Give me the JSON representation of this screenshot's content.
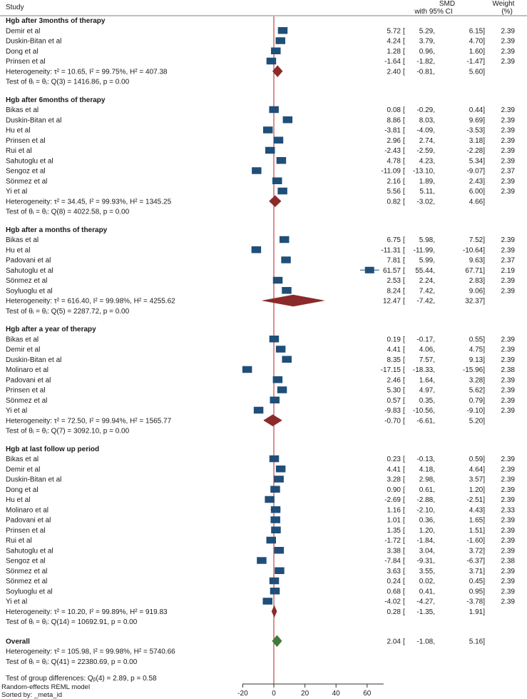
{
  "chart_data": {
    "type": "forest",
    "header": {
      "study": "Study",
      "effect_line1": "SMD",
      "effect_line2": "with 95% CI",
      "weight_line1": "Weight",
      "weight_line2": "(%)"
    },
    "null_line": 0,
    "x_axis": {
      "min": -20,
      "max": 60,
      "ticks": [
        -20,
        0,
        20,
        40,
        60
      ],
      "tick_labels": [
        "-20",
        "0",
        "20",
        "40",
        "60"
      ]
    },
    "groups": [
      {
        "title": "Hgb after 3months of therapy",
        "studies": [
          {
            "name": "Demir et al",
            "est": 5.72,
            "lo": 5.29,
            "hi": 6.15,
            "weight": 2.39,
            "est_text": "5.72",
            "lo_text": "5.29",
            "hi_text": "6.15",
            "weight_text": "2.39"
          },
          {
            "name": "Duskin-Bitan et al",
            "est": 4.24,
            "lo": 3.79,
            "hi": 4.7,
            "weight": 2.39,
            "est_text": "4.24",
            "lo_text": "3.79",
            "hi_text": "4.70",
            "weight_text": "2.39"
          },
          {
            "name": "Dong et al",
            "est": 1.28,
            "lo": 0.96,
            "hi": 1.6,
            "weight": 2.39,
            "est_text": "1.28",
            "lo_text": "0.96",
            "hi_text": "1.60",
            "weight_text": "2.39"
          },
          {
            "name": "Prinsen et al",
            "est": -1.64,
            "lo": -1.82,
            "hi": -1.47,
            "weight": 2.39,
            "est_text": "-1.64",
            "lo_text": "-1.82",
            "hi_text": "-1.47",
            "weight_text": "2.39"
          }
        ],
        "heterogeneity": "Heterogeneity: τ² = 10.65, I² = 99.75%, H² = 407.38",
        "pooled": {
          "est": 2.4,
          "lo": -0.81,
          "hi": 5.6,
          "est_text": "2.40",
          "lo_text": "-0.81",
          "hi_text": "5.60"
        },
        "test": "Test of θᵢ = θⱼ: Q(3) = 1416.86, p = 0.00"
      },
      {
        "title": "Hgb after 6months of therapy",
        "studies": [
          {
            "name": "Bikas et al",
            "est": 0.08,
            "lo": -0.29,
            "hi": 0.44,
            "weight": 2.39,
            "est_text": "0.08",
            "lo_text": "-0.29",
            "hi_text": "0.44",
            "weight_text": "2.39"
          },
          {
            "name": "Duskin-Bitan et al",
            "est": 8.86,
            "lo": 8.03,
            "hi": 9.69,
            "weight": 2.39,
            "est_text": "8.86",
            "lo_text": "8.03",
            "hi_text": "9.69",
            "weight_text": "2.39"
          },
          {
            "name": "Hu et al",
            "est": -3.81,
            "lo": -4.09,
            "hi": -3.53,
            "weight": 2.39,
            "est_text": "-3.81",
            "lo_text": "-4.09",
            "hi_text": "-3.53",
            "weight_text": "2.39"
          },
          {
            "name": "Prinsen et al",
            "est": 2.96,
            "lo": 2.74,
            "hi": 3.18,
            "weight": 2.39,
            "est_text": "2.96",
            "lo_text": "2.74",
            "hi_text": "3.18",
            "weight_text": "2.39"
          },
          {
            "name": "Rui et al",
            "est": -2.43,
            "lo": -2.59,
            "hi": -2.28,
            "weight": 2.39,
            "est_text": "-2.43",
            "lo_text": "-2.59",
            "hi_text": "-2.28",
            "weight_text": "2.39"
          },
          {
            "name": "Sahutoglu et al",
            "est": 4.78,
            "lo": 4.23,
            "hi": 5.34,
            "weight": 2.39,
            "est_text": "4.78",
            "lo_text": "4.23",
            "hi_text": "5.34",
            "weight_text": "2.39"
          },
          {
            "name": "Sengoz et al",
            "est": -11.09,
            "lo": -13.1,
            "hi": -9.07,
            "weight": 2.37,
            "est_text": "-11.09",
            "lo_text": "-13.10",
            "hi_text": "-9.07",
            "weight_text": "2.37"
          },
          {
            "name": "Sönmez et al",
            "est": 2.16,
            "lo": 1.89,
            "hi": 2.43,
            "weight": 2.39,
            "est_text": "2.16",
            "lo_text": "1.89",
            "hi_text": "2.43",
            "weight_text": "2.39"
          },
          {
            "name": "Yi et al",
            "est": 5.56,
            "lo": 5.11,
            "hi": 6.0,
            "weight": 2.39,
            "est_text": "5.56",
            "lo_text": "5.11",
            "hi_text": "6.00",
            "weight_text": "2.39"
          }
        ],
        "heterogeneity": "Heterogeneity: τ² = 34.45, I² = 99.93%, H² = 1345.25",
        "pooled": {
          "est": 0.82,
          "lo": -3.02,
          "hi": 4.66,
          "est_text": "0.82",
          "lo_text": "-3.02",
          "hi_text": "4.66"
        },
        "test": "Test of θᵢ = θⱼ: Q(8) = 4022.58, p = 0.00"
      },
      {
        "title": "Hgb after a months of therapy",
        "studies": [
          {
            "name": "Bikas et al",
            "est": 6.75,
            "lo": 5.98,
            "hi": 7.52,
            "weight": 2.39,
            "est_text": "6.75",
            "lo_text": "5.98",
            "hi_text": "7.52",
            "weight_text": "2.39"
          },
          {
            "name": "Hu et al",
            "est": -11.31,
            "lo": -11.99,
            "hi": -10.64,
            "weight": 2.39,
            "est_text": "-11.31",
            "lo_text": "-11.99",
            "hi_text": "-10.64",
            "weight_text": "2.39"
          },
          {
            "name": "Padovani et al",
            "est": 7.81,
            "lo": 5.99,
            "hi": 9.63,
            "weight": 2.37,
            "est_text": "7.81",
            "lo_text": "5.99",
            "hi_text": "9.63",
            "weight_text": "2.37"
          },
          {
            "name": "Sahutoglu et al",
            "est": 61.57,
            "lo": 55.44,
            "hi": 67.71,
            "weight": 2.19,
            "est_text": "61.57",
            "lo_text": "55.44",
            "hi_text": "67.71",
            "weight_text": "2.19"
          },
          {
            "name": "Sönmez et al",
            "est": 2.53,
            "lo": 2.24,
            "hi": 2.83,
            "weight": 2.39,
            "est_text": "2.53",
            "lo_text": "2.24",
            "hi_text": "2.83",
            "weight_text": "2.39"
          },
          {
            "name": "Soyluoglu et al",
            "est": 8.24,
            "lo": 7.42,
            "hi": 9.06,
            "weight": 2.39,
            "est_text": "8.24",
            "lo_text": "7.42",
            "hi_text": "9.06",
            "weight_text": "2.39"
          }
        ],
        "heterogeneity": "Heterogeneity: τ² = 616.40, I² = 99.98%, H² = 4255.62",
        "pooled": {
          "est": 12.47,
          "lo": -7.42,
          "hi": 32.37,
          "est_text": "12.47",
          "lo_text": "-7.42",
          "hi_text": "32.37"
        },
        "test": "Test of θᵢ = θⱼ: Q(5) = 2287.72, p = 0.00"
      },
      {
        "title": "Hgb after a year of therapy",
        "studies": [
          {
            "name": "Bikas et al",
            "est": 0.19,
            "lo": -0.17,
            "hi": 0.55,
            "weight": 2.39,
            "est_text": "0.19",
            "lo_text": "-0.17",
            "hi_text": "0.55",
            "weight_text": "2.39"
          },
          {
            "name": "Demir et al",
            "est": 4.41,
            "lo": 4.06,
            "hi": 4.75,
            "weight": 2.39,
            "est_text": "4.41",
            "lo_text": "4.06",
            "hi_text": "4.75",
            "weight_text": "2.39"
          },
          {
            "name": "Duskin-Bitan et al",
            "est": 8.35,
            "lo": 7.57,
            "hi": 9.13,
            "weight": 2.39,
            "est_text": "8.35",
            "lo_text": "7.57",
            "hi_text": "9.13",
            "weight_text": "2.39"
          },
          {
            "name": "Molinaro et al",
            "est": -17.15,
            "lo": -18.33,
            "hi": -15.96,
            "weight": 2.38,
            "est_text": "-17.15",
            "lo_text": "-18.33",
            "hi_text": "-15.96",
            "weight_text": "2.38"
          },
          {
            "name": "Padovani et al",
            "est": 2.46,
            "lo": 1.64,
            "hi": 3.28,
            "weight": 2.39,
            "est_text": "2.46",
            "lo_text": "1.64",
            "hi_text": "3.28",
            "weight_text": "2.39"
          },
          {
            "name": "Prinsen et al",
            "est": 5.3,
            "lo": 4.97,
            "hi": 5.62,
            "weight": 2.39,
            "est_text": "5.30",
            "lo_text": "4.97",
            "hi_text": "5.62",
            "weight_text": "2.39"
          },
          {
            "name": "Sönmez et al",
            "est": 0.57,
            "lo": 0.35,
            "hi": 0.79,
            "weight": 2.39,
            "est_text": "0.57",
            "lo_text": "0.35",
            "hi_text": "0.79",
            "weight_text": "2.39"
          },
          {
            "name": "Yi et al",
            "est": -9.83,
            "lo": -10.56,
            "hi": -9.1,
            "weight": 2.39,
            "est_text": "-9.83",
            "lo_text": "-10.56",
            "hi_text": "-9.10",
            "weight_text": "2.39"
          }
        ],
        "heterogeneity": "Heterogeneity: τ² = 72.50, I² = 99.94%, H² = 1565.77",
        "pooled": {
          "est": -0.7,
          "lo": -6.61,
          "hi": 5.2,
          "est_text": "-0.70",
          "lo_text": "-6.61",
          "hi_text": "5.20"
        },
        "test": "Test of θᵢ = θⱼ: Q(7) = 3092.10, p = 0.00"
      },
      {
        "title": "Hgb at last follow up  period",
        "studies": [
          {
            "name": "Bikas  et al",
            "est": 0.23,
            "lo": -0.13,
            "hi": 0.59,
            "weight": 2.39,
            "est_text": "0.23",
            "lo_text": "-0.13",
            "hi_text": "0.59",
            "weight_text": "2.39"
          },
          {
            "name": "Demir et al",
            "est": 4.41,
            "lo": 4.18,
            "hi": 4.64,
            "weight": 2.39,
            "est_text": "4.41",
            "lo_text": "4.18",
            "hi_text": "4.64",
            "weight_text": "2.39"
          },
          {
            "name": "Duskin-Bitan et al",
            "est": 3.28,
            "lo": 2.98,
            "hi": 3.57,
            "weight": 2.39,
            "est_text": "3.28",
            "lo_text": "2.98",
            "hi_text": "3.57",
            "weight_text": "2.39"
          },
          {
            "name": "Dong et al",
            "est": 0.9,
            "lo": 0.61,
            "hi": 1.2,
            "weight": 2.39,
            "est_text": "0.90",
            "lo_text": "0.61",
            "hi_text": "1.20",
            "weight_text": "2.39"
          },
          {
            "name": "Hu et al",
            "est": -2.69,
            "lo": -2.88,
            "hi": -2.51,
            "weight": 2.39,
            "est_text": "-2.69",
            "lo_text": "-2.88",
            "hi_text": "-2.51",
            "weight_text": "2.39"
          },
          {
            "name": "Molinaro et al",
            "est": 1.16,
            "lo": -2.1,
            "hi": 4.43,
            "weight": 2.33,
            "est_text": "1.16",
            "lo_text": "-2.10",
            "hi_text": "4.43",
            "weight_text": "2.33"
          },
          {
            "name": "Padovani et al",
            "est": 1.01,
            "lo": 0.36,
            "hi": 1.65,
            "weight": 2.39,
            "est_text": "1.01",
            "lo_text": "0.36",
            "hi_text": "1.65",
            "weight_text": "2.39"
          },
          {
            "name": "Prinsen et al",
            "est": 1.35,
            "lo": 1.2,
            "hi": 1.51,
            "weight": 2.39,
            "est_text": "1.35",
            "lo_text": "1.20",
            "hi_text": "1.51",
            "weight_text": "2.39"
          },
          {
            "name": "Rui et al",
            "est": -1.72,
            "lo": -1.84,
            "hi": -1.6,
            "weight": 2.39,
            "est_text": "-1.72",
            "lo_text": "-1.84",
            "hi_text": "-1.60",
            "weight_text": "2.39"
          },
          {
            "name": "Sahutoglu et al",
            "est": 3.38,
            "lo": 3.04,
            "hi": 3.72,
            "weight": 2.39,
            "est_text": "3.38",
            "lo_text": "3.04",
            "hi_text": "3.72",
            "weight_text": "2.39"
          },
          {
            "name": "Sengoz et al",
            "est": -7.84,
            "lo": -9.31,
            "hi": -6.37,
            "weight": 2.38,
            "est_text": "-7.84",
            "lo_text": "-9.31",
            "hi_text": "-6.37",
            "weight_text": "2.38"
          },
          {
            "name": "Sönmez et al",
            "est": 3.63,
            "lo": 3.55,
            "hi": 3.71,
            "weight": 2.39,
            "est_text": "3.63",
            "lo_text": "3.55",
            "hi_text": "3.71",
            "weight_text": "2.39"
          },
          {
            "name": "Sönmez et al",
            "est": 0.24,
            "lo": 0.02,
            "hi": 0.45,
            "weight": 2.39,
            "est_text": "0.24",
            "lo_text": "0.02",
            "hi_text": "0.45",
            "weight_text": "2.39"
          },
          {
            "name": "Soyluoglu et al",
            "est": 0.68,
            "lo": 0.41,
            "hi": 0.95,
            "weight": 2.39,
            "est_text": "0.68",
            "lo_text": "0.41",
            "hi_text": "0.95",
            "weight_text": "2.39"
          },
          {
            "name": "Yi et al",
            "est": -4.02,
            "lo": -4.27,
            "hi": -3.78,
            "weight": 2.39,
            "est_text": "-4.02",
            "lo_text": "-4.27",
            "hi_text": "-3.78",
            "weight_text": "2.39"
          }
        ],
        "heterogeneity": "Heterogeneity: τ² = 10.20, I² = 99.89%, H² = 919.83",
        "pooled": {
          "est": 0.28,
          "lo": -1.35,
          "hi": 1.91,
          "est_text": "0.28",
          "lo_text": "-1.35",
          "hi_text": "1.91"
        },
        "test": "Test of θᵢ = θⱼ: Q(14) = 10692.91, p = 0.00"
      }
    ],
    "overall": {
      "title": "Overall",
      "est": 2.04,
      "lo": -1.08,
      "hi": 5.16,
      "est_text": "2.04",
      "lo_text": "-1.08",
      "hi_text": "5.16",
      "heterogeneity": "Heterogeneity: τ² = 105.98, I² = 99.98%, H² = 5740.66",
      "test": "Test of θᵢ = θⱼ: Q(41) = 22380.69, p = 0.00",
      "group_test": "Test of group differences: Qᵦ(4) = 2.89, p = 0.58"
    },
    "footer": [
      "Random-effects REML model",
      "Sorted by: _meta_id"
    ],
    "colors": {
      "study_marker": "#1f4e79",
      "subgroup_diamond": "#8b2a2a",
      "overall_diamond": "#3f7a3a",
      "null_line": "#b22222",
      "text": "#1a1a1a"
    }
  }
}
